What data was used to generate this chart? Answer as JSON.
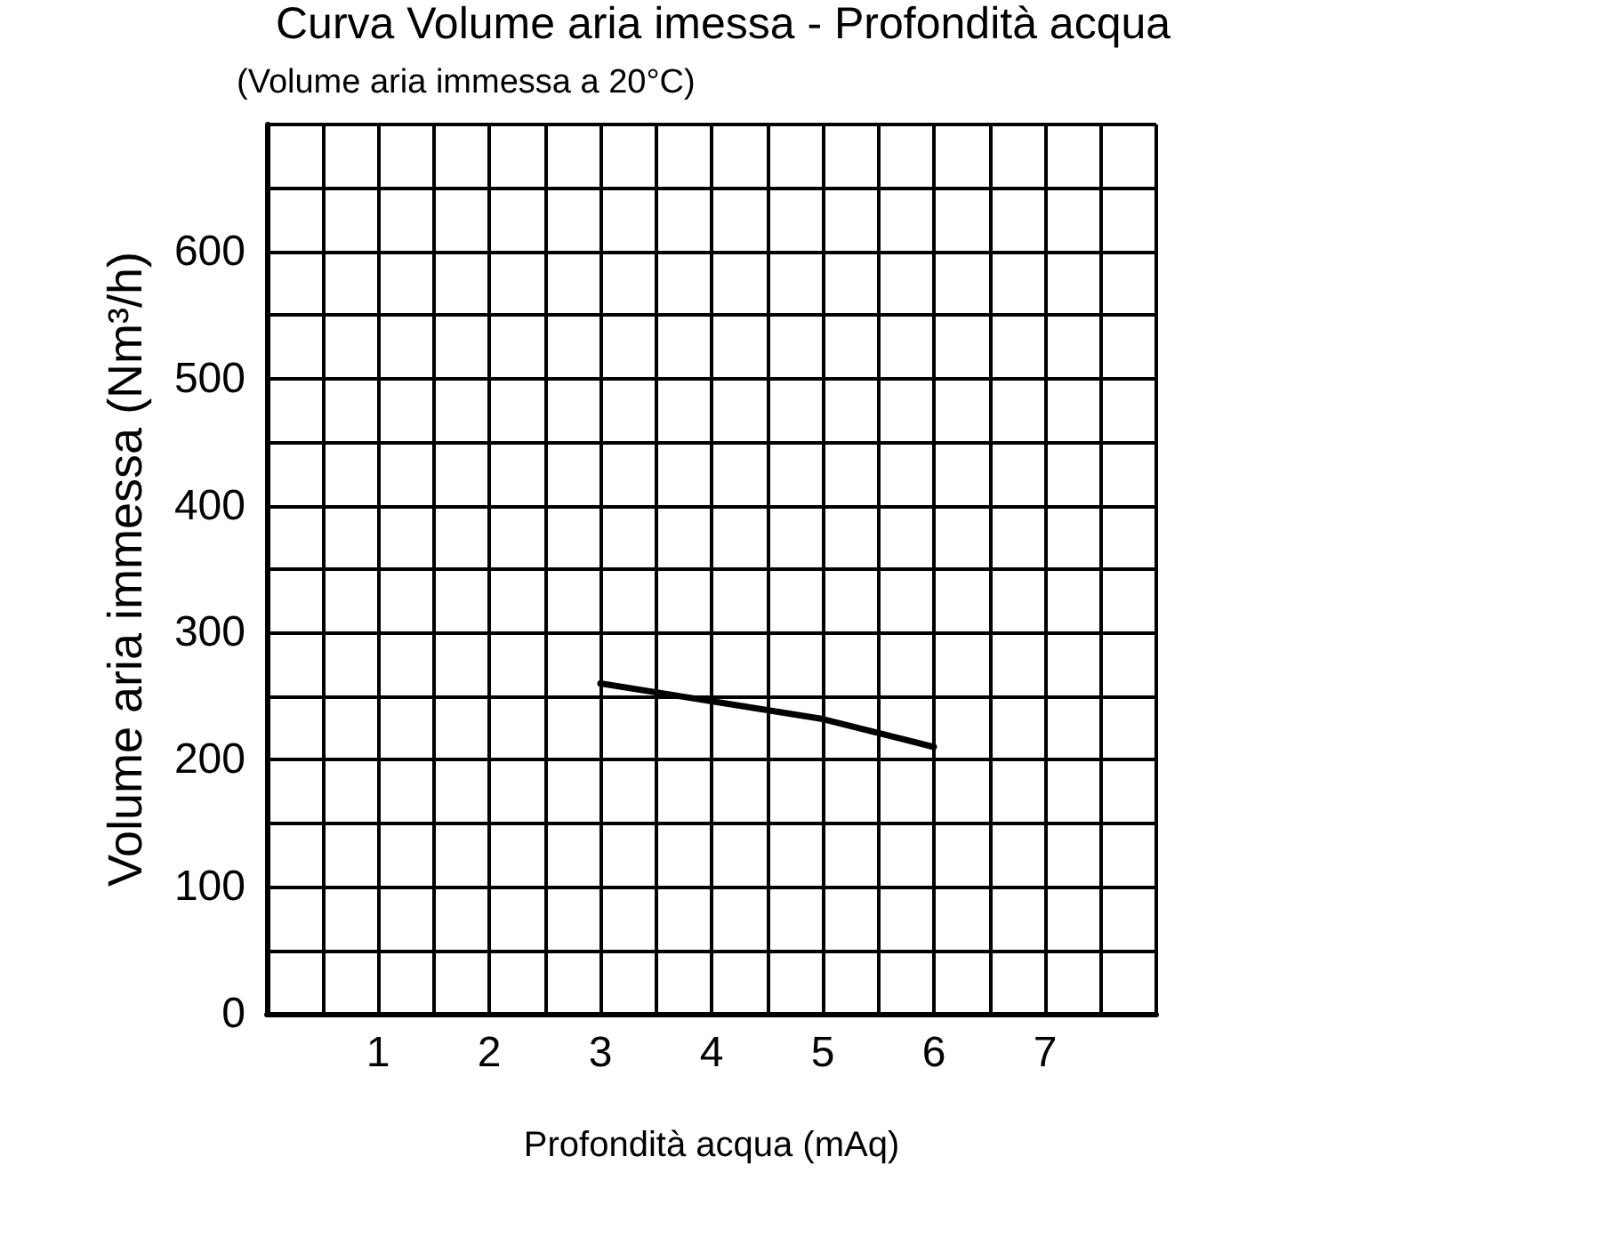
{
  "chart_data": {
    "type": "line",
    "title": "Curva Volume aria imessa - Profondità acqua",
    "subtitle": "(Volume aria immessa a 20°C)",
    "xlabel": "Profondità acqua (mAq)",
    "ylabel": "Volume aria immessa (Nm³/h)",
    "x": [
      3,
      4,
      5,
      6
    ],
    "series": [
      {
        "color": "#000000",
        "values": [
          260,
          246,
          232,
          210
        ]
      }
    ],
    "xlim": [
      0,
      8
    ],
    "ylim": [
      0,
      700
    ],
    "xticks": [
      {
        "value": 0,
        "label": null
      },
      {
        "value": 0.5,
        "label": null
      },
      1,
      {
        "value": 1.5,
        "label": null
      },
      2,
      {
        "value": 2.5,
        "label": null
      },
      3,
      {
        "value": 3.5,
        "label": null
      },
      4,
      {
        "value": 4.5,
        "label": null
      },
      5,
      {
        "value": 5.5,
        "label": null
      },
      6,
      {
        "value": 6.5,
        "label": null
      },
      7,
      {
        "value": 7.5,
        "label": null
      },
      {
        "value": 8,
        "label": null
      }
    ],
    "yticks": [
      0,
      {
        "value": 50,
        "label": null
      },
      100,
      {
        "value": 150,
        "label": null
      },
      200,
      {
        "value": 250,
        "label": null
      },
      300,
      {
        "value": 350,
        "label": null
      },
      400,
      {
        "value": 450,
        "label": null
      },
      500,
      {
        "value": 550,
        "label": null
      },
      600,
      {
        "value": 650,
        "label": null
      },
      {
        "value": 700,
        "label": null
      }
    ],
    "grid": true,
    "marker": "none",
    "line_style": "solid"
  }
}
